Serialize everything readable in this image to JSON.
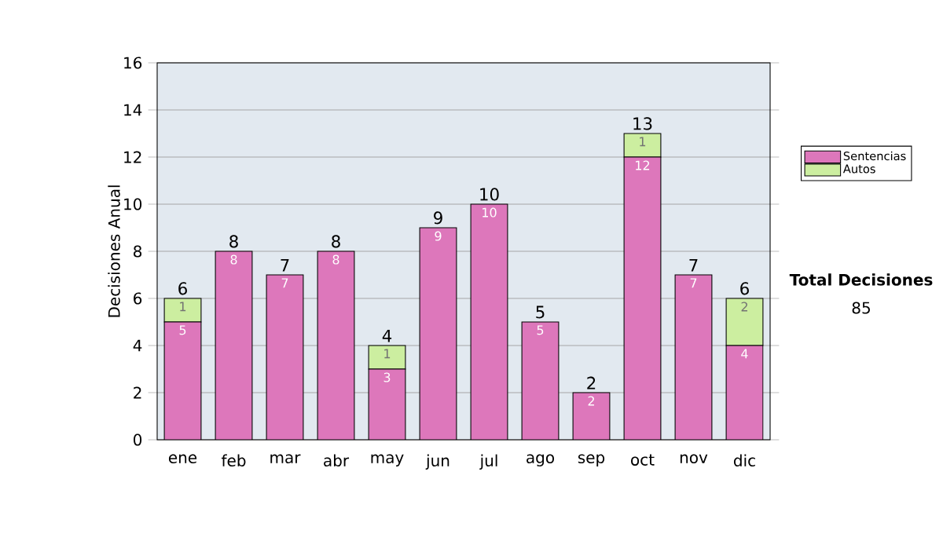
{
  "chart_data": {
    "type": "bar",
    "stacked": true,
    "ylabel": "Decisiones Anual",
    "categories": [
      "ene",
      "feb",
      "mar",
      "abr",
      "may",
      "jun",
      "jul",
      "ago",
      "sep",
      "oct",
      "nov",
      "dic"
    ],
    "series": [
      {
        "name": "Sentencias",
        "color": "#dd77bb",
        "values": [
          5,
          8,
          7,
          8,
          3,
          9,
          10,
          5,
          2,
          12,
          7,
          4
        ],
        "value_labels": [
          "5",
          "8",
          "7",
          "8",
          "3",
          "9",
          "10",
          "5",
          "2",
          "12",
          "7",
          "4"
        ]
      },
      {
        "name": "Autos",
        "color": "#cceea0",
        "values": [
          1,
          0,
          0,
          0,
          1,
          0,
          0,
          0,
          0,
          1,
          0,
          2
        ],
        "value_labels": [
          "1",
          null,
          null,
          null,
          "1",
          null,
          null,
          null,
          null,
          "1",
          null,
          "2"
        ]
      }
    ],
    "totals": [
      "6",
      "8",
      "7",
      "8",
      "4",
      "9",
      "10",
      "5",
      "2",
      "13",
      "7",
      "6"
    ],
    "ylim": [
      0,
      16
    ],
    "yticks": [
      0,
      2,
      4,
      6,
      8,
      10,
      12,
      14,
      16
    ],
    "grid": "y",
    "legend": "right",
    "annotations": [
      "Total Decisiones",
      "85"
    ]
  }
}
